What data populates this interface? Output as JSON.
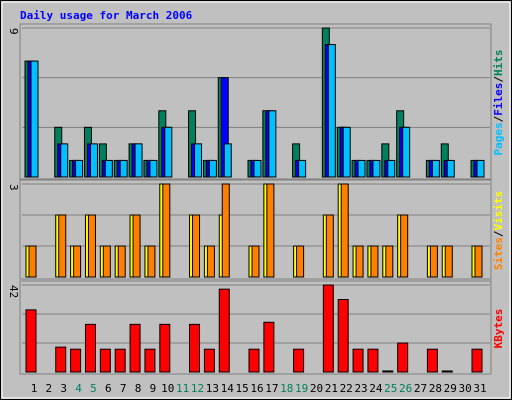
{
  "chart_data": [
    {
      "type": "bar",
      "title": "Daily usage for March 2006",
      "legend_separator": "/",
      "ylim": [
        0,
        9
      ],
      "yticks": [
        9
      ],
      "gridlines": [
        3,
        6
      ],
      "series": [
        {
          "name": "Hits",
          "color": "#00805c",
          "values": [
            7,
            0,
            3,
            1,
            3,
            2,
            1,
            2,
            1,
            4,
            0,
            4,
            1,
            6,
            0,
            1,
            4,
            0,
            2,
            0,
            9,
            3,
            1,
            1,
            2,
            4,
            0,
            1,
            2,
            0,
            1
          ]
        },
        {
          "name": "Files",
          "color": "#0000ff",
          "values": [
            7,
            0,
            2,
            1,
            2,
            1,
            1,
            2,
            1,
            3,
            0,
            2,
            1,
            6,
            0,
            1,
            4,
            0,
            1,
            0,
            8,
            3,
            1,
            1,
            1,
            3,
            0,
            1,
            1,
            0,
            1
          ]
        },
        {
          "name": "Pages",
          "color": "#00c0ff",
          "values": [
            7,
            0,
            2,
            1,
            2,
            1,
            1,
            2,
            1,
            3,
            0,
            2,
            1,
            2,
            0,
            1,
            4,
            0,
            1,
            0,
            8,
            3,
            1,
            1,
            1,
            3,
            0,
            1,
            1,
            0,
            1
          ]
        }
      ]
    },
    {
      "type": "bar",
      "legend_separator": "/",
      "ylim": [
        0,
        3
      ],
      "yticks": [
        3
      ],
      "gridlines": [
        1,
        2
      ],
      "series": [
        {
          "name": "Visits",
          "color": "#ffff00",
          "values": [
            1,
            0,
            2,
            1,
            2,
            1,
            1,
            2,
            1,
            3,
            0,
            2,
            1,
            2,
            0,
            1,
            3,
            0,
            1,
            0,
            2,
            3,
            1,
            1,
            1,
            2,
            0,
            1,
            1,
            0,
            1
          ]
        },
        {
          "name": "Sites",
          "color": "#ff8000",
          "values": [
            1,
            0,
            2,
            1,
            2,
            1,
            1,
            2,
            1,
            3,
            0,
            2,
            1,
            3,
            0,
            1,
            3,
            0,
            1,
            0,
            2,
            3,
            1,
            1,
            1,
            2,
            0,
            1,
            1,
            0,
            1
          ]
        }
      ]
    },
    {
      "type": "bar",
      "ylim": [
        0,
        42
      ],
      "yticks": [
        42
      ],
      "gridlines": [
        14,
        28
      ],
      "series": [
        {
          "name": "KBytes",
          "color": "#ff0000",
          "values": [
            30,
            0,
            12,
            11,
            23,
            11,
            11,
            23,
            11,
            23,
            0,
            23,
            11,
            40,
            0,
            11,
            24,
            0,
            11,
            0,
            42,
            35,
            11,
            11,
            0.5,
            14,
            0,
            11,
            0.5,
            0,
            11
          ]
        }
      ],
      "categories": [
        "1",
        "2",
        "3",
        "4",
        "5",
        "6",
        "7",
        "8",
        "9",
        "10",
        "11",
        "12",
        "13",
        "14",
        "15",
        "16",
        "17",
        "18",
        "19",
        "20",
        "21",
        "22",
        "23",
        "24",
        "25",
        "26",
        "27",
        "28",
        "29",
        "30",
        "31"
      ],
      "category_colors": [
        "#000000",
        "#000000",
        "#000000",
        "#00805c",
        "#00805c",
        "#000000",
        "#000000",
        "#000000",
        "#000000",
        "#000000",
        "#00805c",
        "#00805c",
        "#000000",
        "#000000",
        "#000000",
        "#000000",
        "#000000",
        "#00805c",
        "#00805c",
        "#000000",
        "#000000",
        "#000000",
        "#000000",
        "#000000",
        "#00805c",
        "#00805c",
        "#000000",
        "#000000",
        "#000000",
        "#000000",
        "#000000"
      ]
    }
  ]
}
